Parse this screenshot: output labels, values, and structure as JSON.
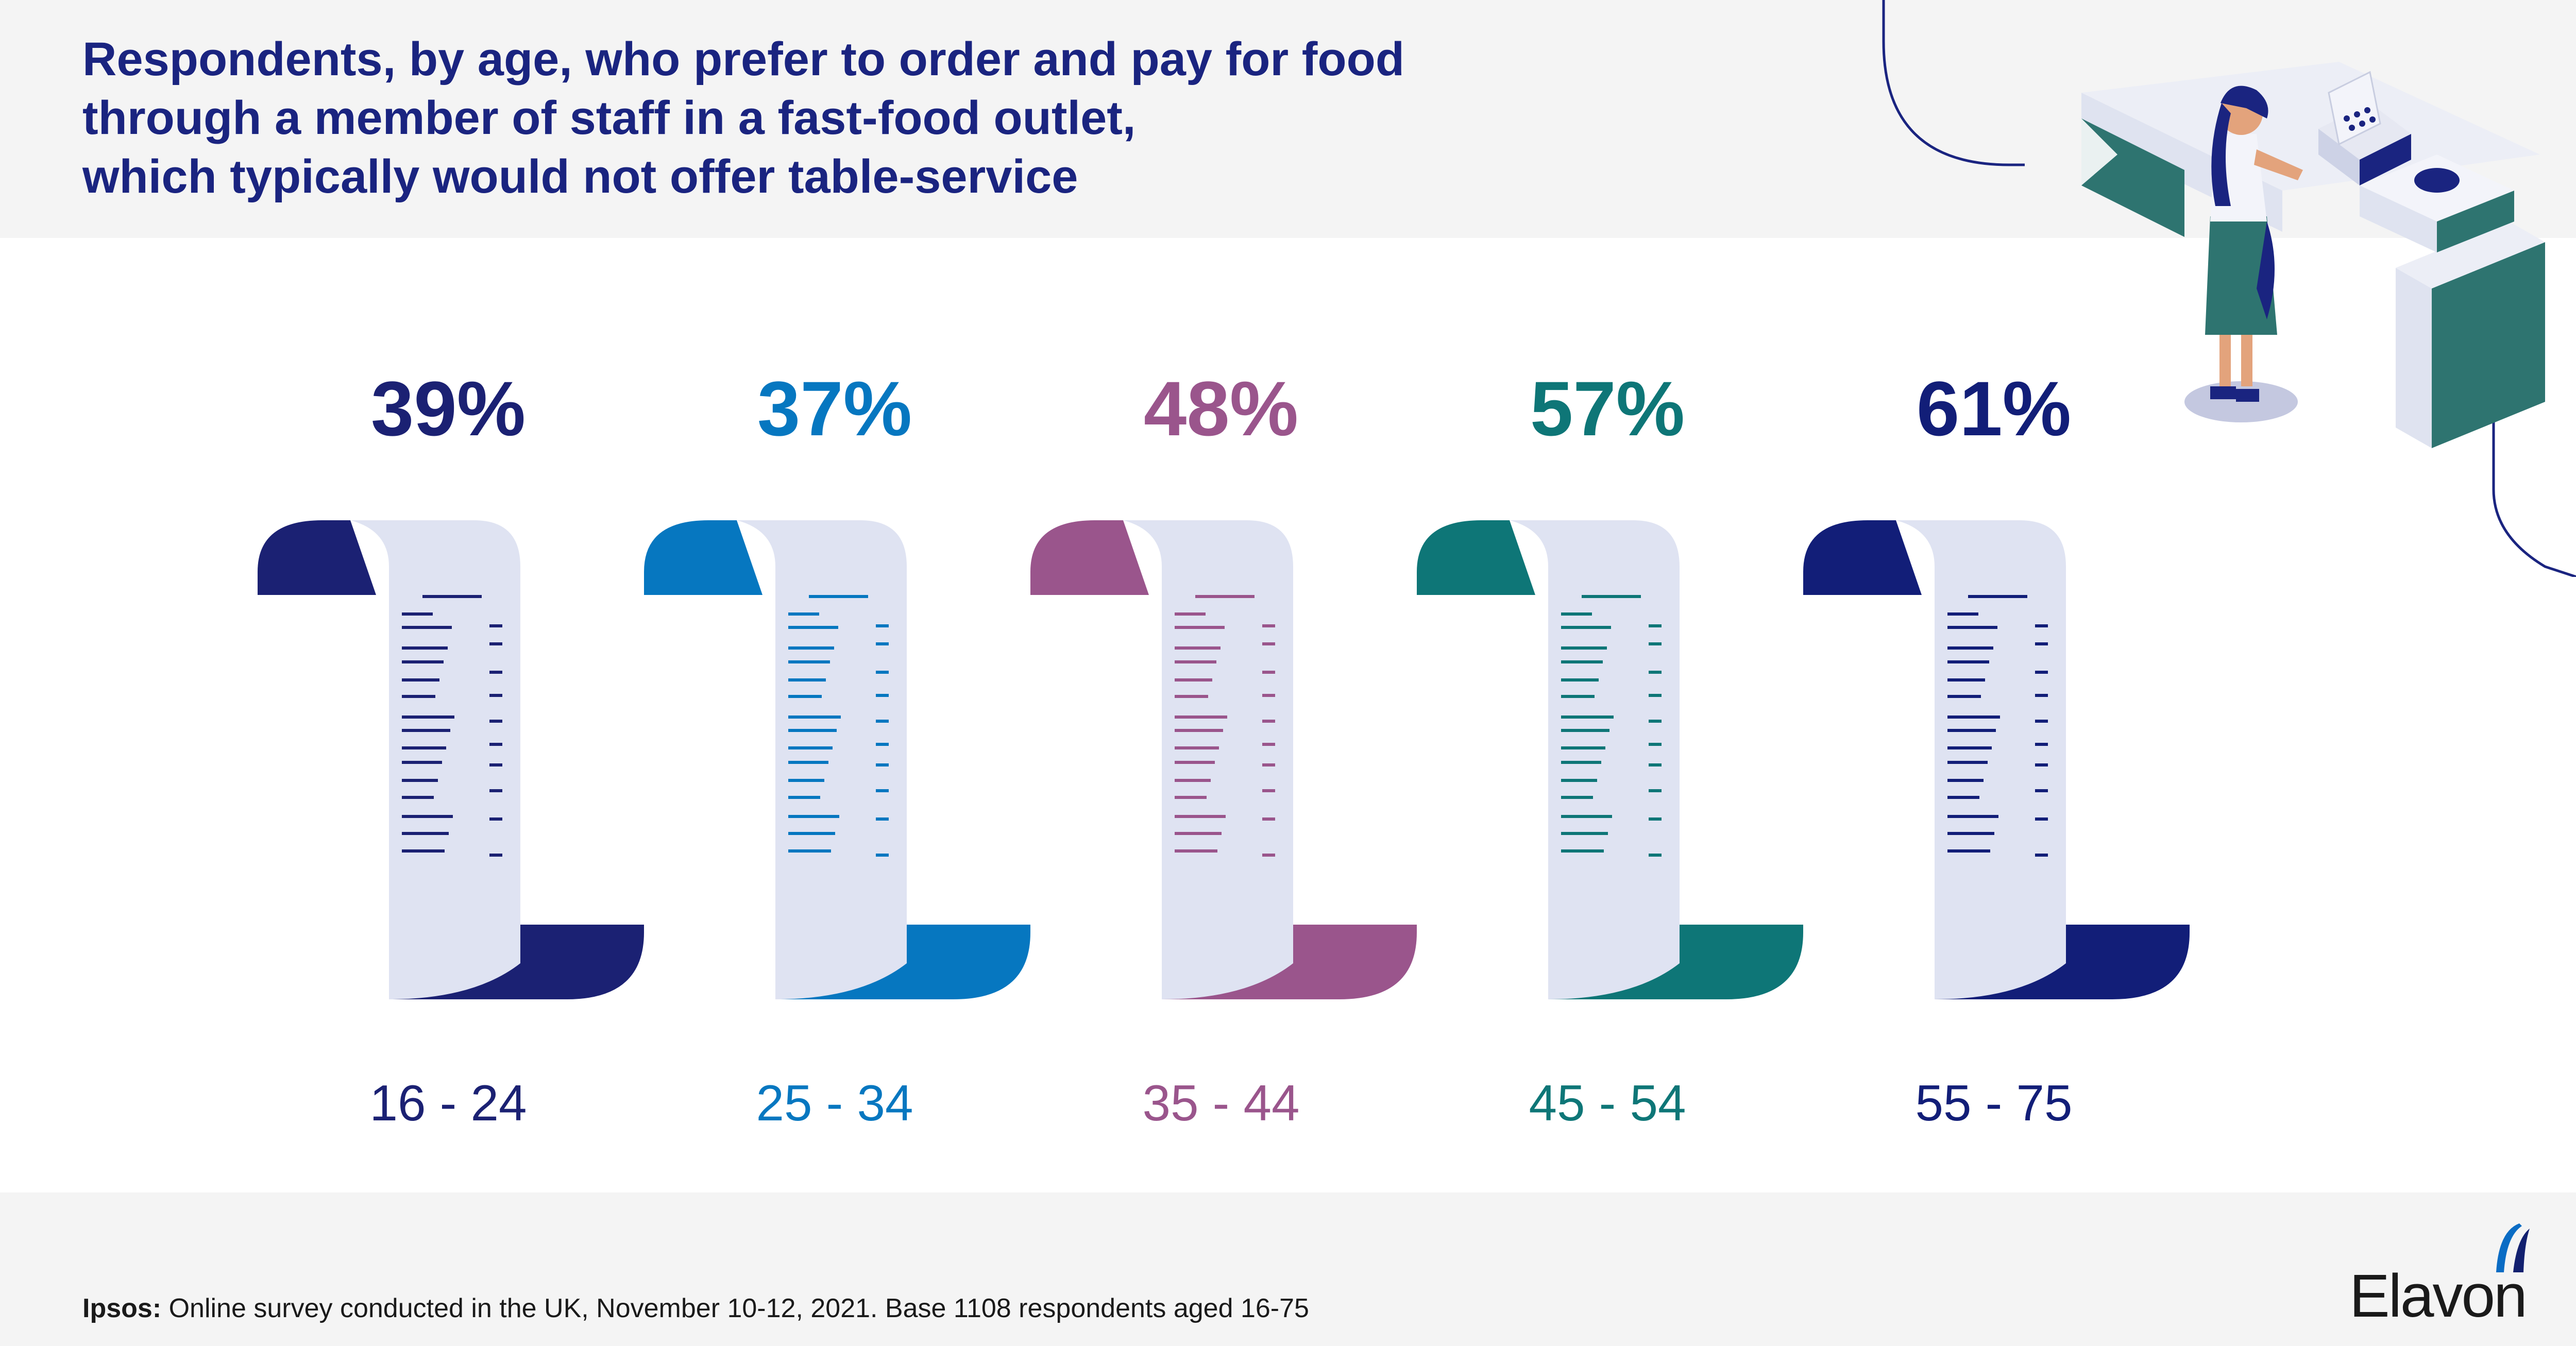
{
  "title": {
    "line1": "Respondents, by age, who prefer to order and pay for food",
    "line2": "through a member of staff in a fast-food outlet,",
    "line3": "which typically would not offer table-service"
  },
  "colors": {
    "background_band": "#f4f4f4",
    "title": "#1a2480",
    "paper": "#dfe3f2"
  },
  "chart_data": {
    "type": "bar",
    "title": "Respondents, by age, who prefer to order and pay for food through a member of staff in a fast-food outlet, which typically would not offer table-service",
    "categories": [
      "16 - 24",
      "25 - 34",
      "35 - 44",
      "45 - 54",
      "55 - 75"
    ],
    "values": [
      39,
      37,
      48,
      57,
      61
    ],
    "value_labels": [
      "39%",
      "37%",
      "48%",
      "57%",
      "61%"
    ],
    "colors": [
      "#1b2173",
      "#0677c0",
      "#9a558c",
      "#0e7677",
      "#121e78"
    ],
    "unit": "%",
    "xlabel": "",
    "ylabel": "",
    "legend": "none"
  },
  "footer": {
    "source_label": "Ipsos:",
    "source_text": " Online survey conducted in the UK, November 10-12, 2021. Base 1108 respondents aged 16-75"
  },
  "logo": {
    "text": "Elavon",
    "icon": "elavon-arc-icon"
  },
  "illustration": {
    "icon": "cashier-at-counter-illustration"
  }
}
